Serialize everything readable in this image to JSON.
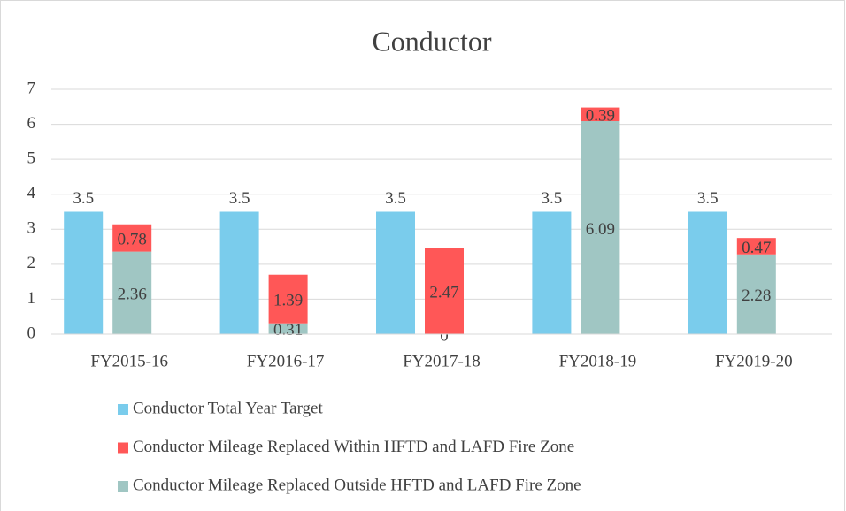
{
  "chart_data": {
    "type": "bar",
    "title": "Conductor",
    "categories": [
      "FY2015-16",
      "FY2016-17",
      "FY2017-18",
      "FY2018-19",
      "FY2019-20"
    ],
    "series": [
      {
        "name": "Conductor Total Year Target",
        "color": "#7accec",
        "values": [
          3.5,
          3.5,
          3.5,
          3.5,
          3.5
        ],
        "stack": "a"
      },
      {
        "name": "Conductor Mileage Replaced Within HFTD and LAFD Fire Zone",
        "color": "#ff5757",
        "values": [
          0.78,
          1.39,
          2.47,
          0.39,
          0.47
        ],
        "stack": "b"
      },
      {
        "name": "Conductor Mileage Replaced Outside HFTD and LAFD Fire Zone",
        "color": "#a0c6c3",
        "values": [
          2.36,
          0.31,
          0,
          6.09,
          2.28
        ],
        "stack": "b"
      }
    ],
    "stack_order": [
      2,
      1
    ],
    "ylim": [
      0,
      7
    ],
    "yticks": [
      0,
      1,
      2,
      3,
      4,
      5,
      6,
      7
    ],
    "grid": true,
    "legend": "bottom"
  }
}
